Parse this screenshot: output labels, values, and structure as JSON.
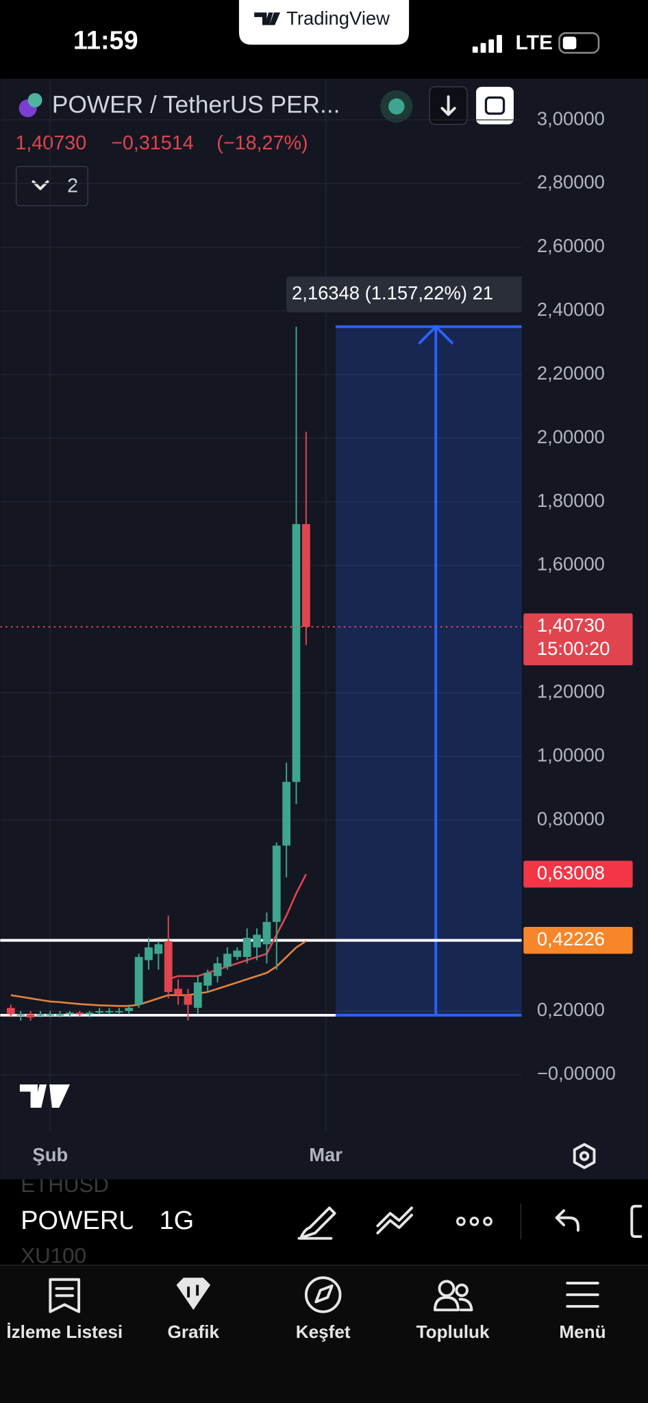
{
  "status_bar": {
    "time": "11:59",
    "network": "LTE"
  },
  "brand": "TradingView",
  "header": {
    "symbol": "POWER / TetherUS PER...",
    "last": "1,40730",
    "change": "−0,31514",
    "change_pct": "(−18,27%)",
    "indicator_count": "2"
  },
  "chart_data": {
    "type": "candlestick",
    "categories": [
      null,
      null,
      null,
      null,
      "Şub",
      null,
      null,
      null,
      null,
      null,
      null,
      null,
      null,
      null,
      null,
      null,
      null,
      null,
      null,
      null,
      null,
      null,
      null,
      null,
      null,
      null,
      null,
      null,
      null,
      null,
      null,
      null,
      "Mar"
    ],
    "open": [
      0.21,
      0.19,
      0.19,
      0.19,
      0.19,
      0.19,
      0.19,
      0.195,
      0.19,
      0.195,
      0.2,
      0.2,
      0.2,
      0.22,
      0.36,
      0.38,
      0.42,
      0.27,
      0.25,
      0.21,
      0.28,
      0.31,
      0.34,
      0.37,
      0.37,
      0.4,
      0.41,
      0.48,
      0.72,
      0.92,
      1.73,
      null,
      null
    ],
    "high": [
      0.22,
      0.2,
      0.2,
      0.2,
      0.2,
      0.2,
      0.2,
      0.2,
      0.2,
      0.21,
      0.21,
      0.21,
      0.22,
      0.38,
      0.43,
      0.42,
      0.5,
      0.3,
      0.27,
      0.31,
      0.33,
      0.37,
      0.4,
      0.4,
      0.46,
      0.46,
      0.51,
      0.73,
      0.98,
      2.35,
      2.02,
      null,
      null
    ],
    "low": [
      0.18,
      0.17,
      0.17,
      0.18,
      0.18,
      0.18,
      0.18,
      0.18,
      0.18,
      0.19,
      0.19,
      0.19,
      0.19,
      0.21,
      0.33,
      0.33,
      0.24,
      0.22,
      0.17,
      0.19,
      0.26,
      0.29,
      0.33,
      0.36,
      0.35,
      0.36,
      0.35,
      0.33,
      0.62,
      0.85,
      1.35,
      null,
      null
    ],
    "close": [
      0.19,
      0.19,
      0.18,
      0.19,
      0.19,
      0.19,
      0.195,
      0.19,
      0.195,
      0.2,
      0.2,
      0.2,
      0.21,
      0.37,
      0.4,
      0.41,
      0.26,
      0.25,
      0.22,
      0.29,
      0.32,
      0.35,
      0.38,
      0.39,
      0.43,
      0.44,
      0.48,
      0.72,
      0.92,
      1.73,
      1.4073,
      null,
      null
    ],
    "up_color": "#3fa58e",
    "down_color": "#e0454f",
    "ylim": [
      -0.2077,
      3.1293
    ],
    "yticks": [
      {
        "value": 3,
        "label": "3,00000"
      },
      {
        "value": 2.8,
        "label": "2,80000"
      },
      {
        "value": 2.6,
        "label": "2,60000"
      },
      {
        "value": 2.4,
        "label": "2,40000"
      },
      {
        "value": 2.2,
        "label": "2,20000"
      },
      {
        "value": 2,
        "label": "2,00000"
      },
      {
        "value": 1.8,
        "label": "1,80000"
      },
      {
        "value": 1.6,
        "label": "1,60000"
      },
      {
        "value": 1.2,
        "label": "1,20000"
      },
      {
        "value": 1,
        "label": "1,00000"
      },
      {
        "value": 0.8,
        "label": "0,80000"
      },
      {
        "value": 0.2,
        "label": "0,20000"
      },
      {
        "value": 0,
        "label": "−0,00000"
      }
    ],
    "grid": true,
    "overlays": [
      {
        "color": "#e8833a",
        "values": [
          0.25,
          0.245,
          0.24,
          0.235,
          0.23,
          0.228,
          0.225,
          0.222,
          0.22,
          0.218,
          0.217,
          0.216,
          0.216,
          0.22,
          0.23,
          0.24,
          0.25,
          0.25,
          0.25,
          0.255,
          0.26,
          0.27,
          0.28,
          0.29,
          0.3,
          0.31,
          0.32,
          0.34,
          0.37,
          0.4,
          0.42,
          null,
          null
        ]
      },
      {
        "color": "#e0454f",
        "values": [
          null,
          null,
          null,
          null,
          null,
          null,
          null,
          null,
          null,
          null,
          null,
          null,
          null,
          null,
          null,
          null,
          0.3,
          0.31,
          0.31,
          0.31,
          0.32,
          0.33,
          0.34,
          0.35,
          0.36,
          0.37,
          0.38,
          0.44,
          0.5,
          0.57,
          0.63,
          null,
          null
        ]
      }
    ],
    "hlines": [
      {
        "value": 0.42226,
        "color": "#ffffff"
      }
    ],
    "price_labels": [
      {
        "value": 1.4073,
        "label": "1,40730",
        "sublabel": "15:00:20",
        "color": "#e0454f",
        "dotted": true
      },
      {
        "value": 0.63008,
        "label": "0,63008",
        "color": "#f23645"
      },
      {
        "value": 0.42226,
        "label": "0,42226",
        "color": "#f7862a"
      }
    ],
    "measure": {
      "from": 0.18695,
      "to": 2.35043,
      "label": "2,16348 (1.157,22%) 21",
      "color": "#2962ff"
    }
  },
  "toolbar": {
    "symbol": "POWERU",
    "interval": "1G",
    "prev_symbol": "ETHUSD",
    "next_symbol": "XU100"
  },
  "tabs": [
    "İzleme Listesi",
    "Grafik",
    "Keşfet",
    "Topluluk",
    "Menü"
  ]
}
